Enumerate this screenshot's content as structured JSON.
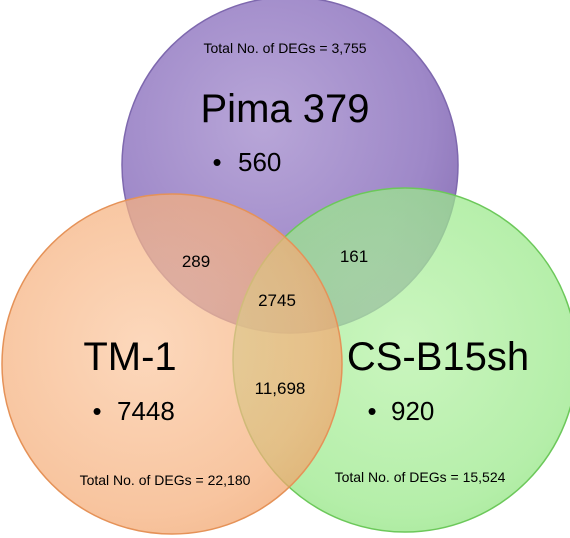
{
  "diagram": {
    "type": "venn",
    "sets": [
      {
        "id": "pima",
        "name": "Pima 379",
        "unique": "560",
        "total_label": "Total No. of DEGs = 3,755",
        "fill": "#8B72B8",
        "stroke": "#7A62A8"
      },
      {
        "id": "tm1",
        "name": "TM-1",
        "unique": "7448",
        "total_label": "Total No. of DEGs = 22,180",
        "fill": "#F2A064",
        "stroke": "#E08A4C"
      },
      {
        "id": "csb15sh",
        "name": "CS-B15sh",
        "unique": "920",
        "total_label": "Total No. of DEGs = 15,524",
        "fill": "#84E070",
        "stroke": "#6CC85A"
      }
    ],
    "overlaps": {
      "pima_tm1": "289",
      "pima_csb15sh": "161",
      "all_three": "2745",
      "tm1_csb15sh": "11,698"
    },
    "bullet": "•"
  }
}
